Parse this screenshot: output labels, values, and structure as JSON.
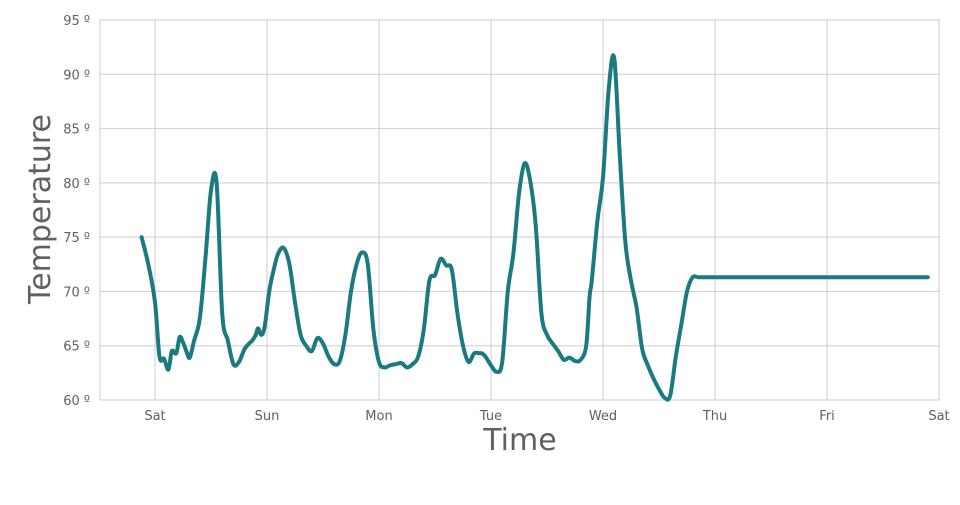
{
  "chart_data": {
    "type": "line",
    "title": "",
    "xlabel": "Time",
    "ylabel": "Temperature",
    "xlim": [
      -0.12,
      7.0
    ],
    "ylim": [
      60,
      95
    ],
    "grid": true,
    "line_color": "#1a7a80",
    "x_ticks": [
      {
        "value": 0,
        "label": "Sat"
      },
      {
        "value": 1,
        "label": "Sun"
      },
      {
        "value": 2,
        "label": "Mon"
      },
      {
        "value": 3,
        "label": "Tue"
      },
      {
        "value": 4,
        "label": "Wed"
      },
      {
        "value": 5,
        "label": "Thu"
      },
      {
        "value": 6,
        "label": "Fri"
      },
      {
        "value": 7,
        "label": "Sat"
      }
    ],
    "y_ticks": [
      {
        "value": 60,
        "label": "60 º"
      },
      {
        "value": 65,
        "label": "65 º"
      },
      {
        "value": 70,
        "label": "70 º"
      },
      {
        "value": 75,
        "label": "75 º"
      },
      {
        "value": 80,
        "label": "80 º"
      },
      {
        "value": 85,
        "label": "85 º"
      },
      {
        "value": 90,
        "label": "90 º"
      },
      {
        "value": 95,
        "label": "95 º"
      }
    ],
    "series": [
      {
        "x": [
          -0.12,
          -0.06,
          0.0,
          0.04,
          0.08,
          0.12,
          0.15,
          0.19,
          0.22,
          0.25,
          0.28,
          0.31,
          0.35,
          0.4,
          0.45,
          0.5,
          0.55,
          0.6,
          0.65,
          0.7,
          0.75,
          0.8,
          0.85,
          0.87,
          0.9,
          0.92,
          0.95,
          0.98,
          1.02,
          1.06,
          1.1,
          1.15,
          1.2,
          1.25,
          1.3,
          1.35,
          1.4,
          1.45,
          1.5,
          1.55,
          1.6,
          1.65,
          1.7,
          1.75,
          1.8,
          1.85,
          1.9,
          1.95,
          2.0,
          2.05,
          2.1,
          2.15,
          2.2,
          2.25,
          2.3,
          2.35,
          2.4,
          2.45,
          2.5,
          2.55,
          2.6,
          2.65,
          2.7,
          2.75,
          2.8,
          2.85,
          2.9,
          2.92,
          2.95,
          3.0,
          3.05,
          3.1,
          3.15,
          3.2,
          3.25,
          3.3,
          3.35,
          3.4,
          3.45,
          3.5,
          3.55,
          3.6,
          3.65,
          3.7,
          3.75,
          3.8,
          3.85,
          3.88,
          3.9,
          3.95,
          4.0,
          4.05,
          4.1,
          4.15,
          4.2,
          4.25,
          4.3,
          4.35,
          4.4,
          4.45,
          4.5,
          4.55,
          4.6,
          4.65,
          4.7,
          4.75,
          4.8,
          4.85,
          4.9,
          4.95,
          5.0,
          5.05,
          5.1,
          5.15,
          5.2,
          5.25,
          5.3,
          5.35,
          5.4,
          5.45,
          5.5,
          5.55,
          5.6,
          5.65,
          5.7,
          5.75,
          5.8,
          5.85,
          5.87,
          5.9,
          5.95,
          6.0,
          6.05,
          6.1,
          6.15,
          6.2,
          6.25,
          6.3,
          6.35,
          6.4,
          6.45,
          6.5,
          6.55,
          6.6,
          6.63,
          6.67,
          6.7,
          6.75,
          6.8,
          6.85,
          6.9
        ],
        "y": [
          75.0,
          72.5,
          69.0,
          64.0,
          63.8,
          62.8,
          64.5,
          64.3,
          65.8,
          65.3,
          64.5,
          63.9,
          65.5,
          67.5,
          73.0,
          79.3,
          80.0,
          68.0,
          65.5,
          63.3,
          63.5,
          64.7,
          65.3,
          65.5,
          66.0,
          66.6,
          66.0,
          66.8,
          70.0,
          72.0,
          73.5,
          74.0,
          72.5,
          69.0,
          66.0,
          65.0,
          64.5,
          65.7,
          65.2,
          64.0,
          63.3,
          63.6,
          66.0,
          70.0,
          72.5,
          73.6,
          72.5,
          66.5,
          63.5,
          63.0,
          63.2,
          63.3,
          63.4,
          63.0,
          63.3,
          64.0,
          66.5,
          71.0,
          71.5,
          73.0,
          72.4,
          72.0,
          68.0,
          65.0,
          63.5,
          64.3,
          64.3,
          64.3,
          64.0,
          63.2,
          62.6,
          63.5,
          70.0,
          73.5,
          79.0,
          81.8,
          80.2,
          76.0,
          68.0,
          66.0,
          65.2,
          64.5,
          63.7,
          63.9,
          63.6,
          63.7,
          65.0,
          69.5,
          71.0,
          76.5,
          80.5,
          88.5,
          91.5,
          82.5,
          74.5,
          71.0,
          68.5,
          64.7,
          63.2,
          62.0,
          61.0,
          60.2,
          60.4,
          64.0,
          67.0,
          70.0,
          71.3,
          71.3,
          71.3,
          71.3,
          71.3,
          71.3,
          71.3,
          71.3,
          71.3,
          71.3,
          71.3,
          71.3,
          71.3,
          71.3,
          71.3,
          71.3,
          71.3,
          71.3,
          71.3,
          71.3,
          71.3,
          71.3,
          71.3,
          71.3,
          71.3,
          71.3,
          71.3,
          71.3,
          71.3,
          71.3,
          71.3,
          71.3,
          71.3,
          71.3,
          71.3,
          71.3,
          71.3,
          71.3,
          71.3,
          71.3,
          71.3,
          71.3,
          71.3,
          71.3,
          71.3
        ]
      }
    ]
  }
}
